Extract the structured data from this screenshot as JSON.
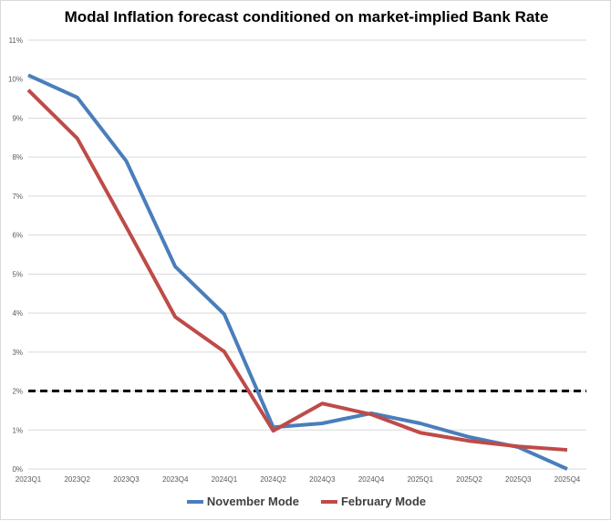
{
  "chart_data": {
    "type": "line",
    "title": "Modal Inflation forecast conditioned on market-implied Bank Rate",
    "xlabel": "",
    "ylabel": "",
    "categories": [
      "2023Q1",
      "2023Q2",
      "2023Q3",
      "2023Q4",
      "2024Q1",
      "2024Q2",
      "2024Q3",
      "2024Q4",
      "2025Q1",
      "2025Q2",
      "2025Q3",
      "2025Q4"
    ],
    "ylim": [
      0,
      11
    ],
    "yticks": [
      "0%",
      "1%",
      "2%",
      "3%",
      "4%",
      "5%",
      "6%",
      "7%",
      "8%",
      "9%",
      "10%",
      "11%"
    ],
    "grid": true,
    "reference_line": {
      "value": 2,
      "style": "dashed",
      "color": "#000000"
    },
    "legend_position": "bottom",
    "series": [
      {
        "name": "November Mode",
        "color": "#4a7ebb",
        "values": [
          10.1,
          9.53,
          7.9,
          5.19,
          3.97,
          1.07,
          1.17,
          1.43,
          1.17,
          0.82,
          0.56,
          0.0
        ]
      },
      {
        "name": "February Mode",
        "color": "#be4b48",
        "values": [
          9.72,
          8.48,
          6.21,
          3.9,
          3.01,
          0.98,
          1.68,
          1.4,
          0.93,
          0.72,
          0.58,
          0.49
        ]
      }
    ]
  }
}
